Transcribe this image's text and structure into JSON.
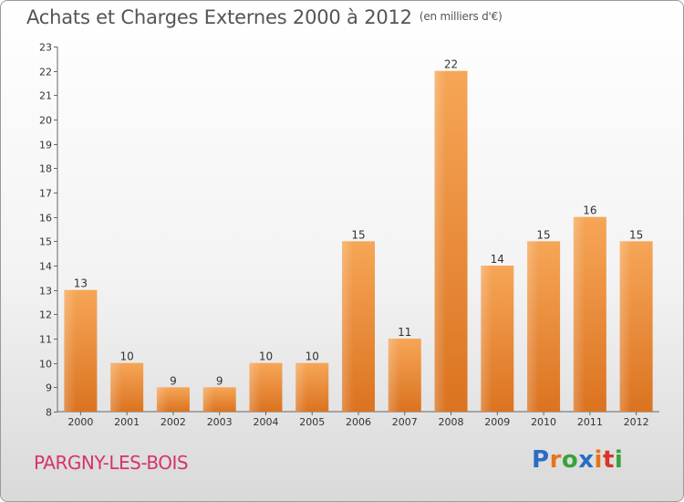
{
  "title": "Achats et Charges Externes 2000 à 2012",
  "unit": "(en milliers d'€)",
  "town": "PARGNY-LES-BOIS",
  "brand": {
    "letters": [
      "P",
      "r",
      "o",
      "x",
      "i",
      "t",
      "i"
    ],
    "colors": [
      "#2b6cc4",
      "#e8731a",
      "#3aa23a",
      "#2b6cc4",
      "#e8731a",
      "#d8342a",
      "#3aa23a"
    ]
  },
  "chart_data": {
    "type": "bar",
    "categories": [
      "2000",
      "2001",
      "2002",
      "2003",
      "2004",
      "2005",
      "2006",
      "2007",
      "2008",
      "2009",
      "2010",
      "2011",
      "2012"
    ],
    "values": [
      13,
      10,
      9,
      9,
      10,
      10,
      15,
      11,
      22,
      14,
      15,
      16,
      15
    ],
    "ylim": [
      8,
      23
    ],
    "yticks": [
      8,
      9,
      10,
      11,
      12,
      13,
      14,
      15,
      16,
      17,
      18,
      19,
      20,
      21,
      22,
      23
    ],
    "grid": false,
    "bar_color": "#f0923a"
  }
}
